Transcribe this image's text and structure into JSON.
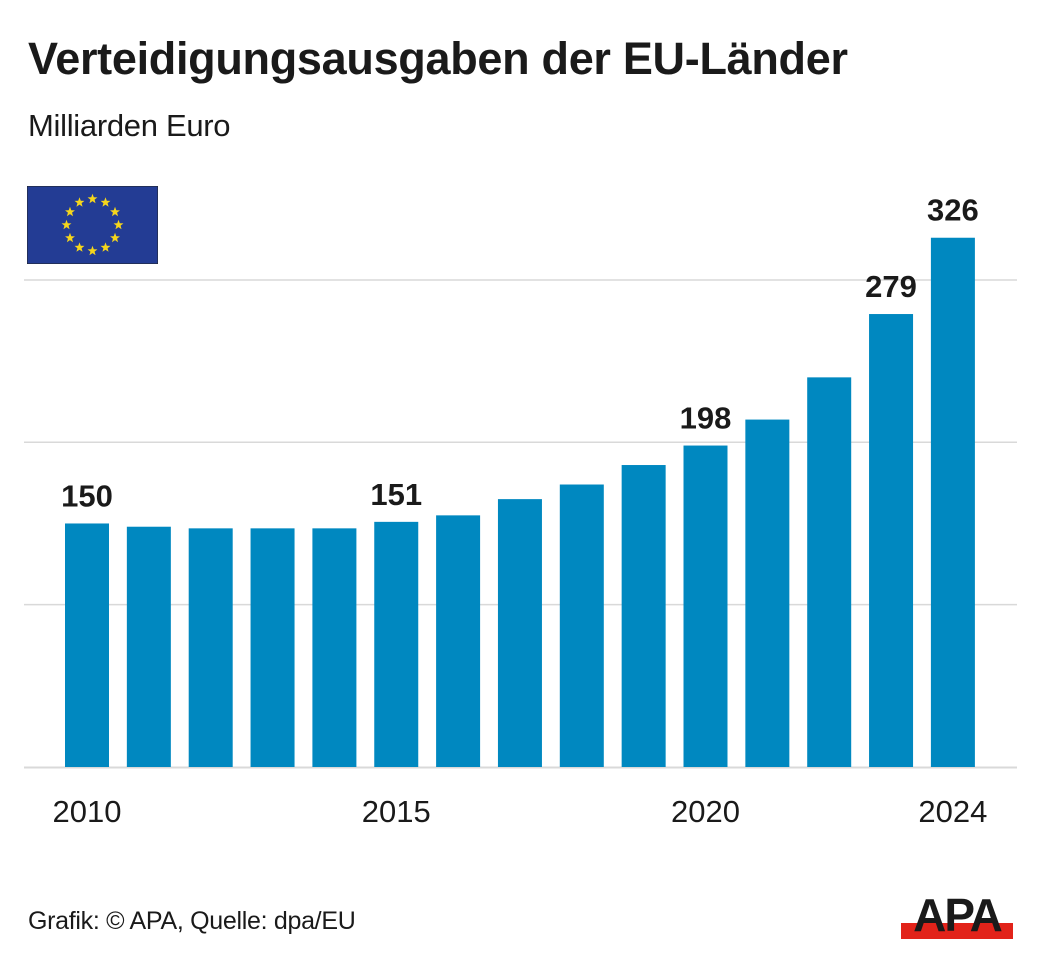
{
  "header": {
    "title": "Verteidigungsausgaben der EU-Länder",
    "subtitle": "Milliarden Euro"
  },
  "flag": {
    "icon": "eu-flag-icon",
    "background": "#233c94",
    "star_color": "#f5d61c",
    "star_count": 12
  },
  "footer": {
    "credit": "Grafik: © APA, Quelle: dpa/EU",
    "logo_text": "APA",
    "logo_bar_color": "#e2231a"
  },
  "chart_data": {
    "type": "bar",
    "title": "Verteidigungsausgaben der EU-Länder",
    "subtitle": "Milliarden Euro",
    "xlabel": "",
    "ylabel": "Milliarden Euro",
    "categories": [
      "2010",
      "2011",
      "2012",
      "2013",
      "2014",
      "2015",
      "2016",
      "2017",
      "2018",
      "2019",
      "2020",
      "2021",
      "2022",
      "2023",
      "2024"
    ],
    "values": [
      150,
      148,
      147,
      147,
      147,
      151,
      155,
      165,
      174,
      186,
      198,
      214,
      240,
      279,
      326
    ],
    "data_labels": [
      {
        "category": "2010",
        "text": "150"
      },
      {
        "category": "2015",
        "text": "151"
      },
      {
        "category": "2020",
        "text": "198"
      },
      {
        "category": "2023",
        "text": "279"
      },
      {
        "category": "2024",
        "text": "326"
      }
    ],
    "x_tick_labels": [
      {
        "category": "2010",
        "text": "2010"
      },
      {
        "category": "2015",
        "text": "2015"
      },
      {
        "category": "2020",
        "text": "2020"
      },
      {
        "category": "2024",
        "text": "2024"
      }
    ],
    "gridlines": [
      100,
      200,
      300
    ],
    "ylim": [
      0,
      326
    ],
    "grid": true,
    "y_tick_labels_shown": false,
    "legend": "none",
    "bar_color": "#0088c0",
    "grid_color": "#d9d9d9"
  }
}
